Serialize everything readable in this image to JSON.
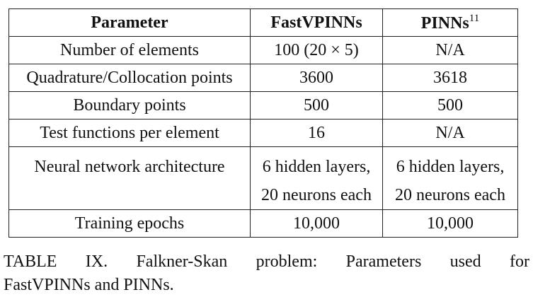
{
  "table": {
    "headers": {
      "parameter": "Parameter",
      "fastvpinns": "FastVPINNs",
      "pinns": "PINNs",
      "pinns_ref": "11"
    },
    "rows": [
      {
        "parameter": "Number of elements",
        "fastvpinns": "100 (20 × 5)",
        "pinns": "N/A"
      },
      {
        "parameter": "Quadrature/Collocation points",
        "fastvpinns": "3600",
        "pinns": "3618"
      },
      {
        "parameter": "Boundary points",
        "fastvpinns": "500",
        "pinns": "500"
      },
      {
        "parameter": "Test functions per element",
        "fastvpinns": "16",
        "pinns": "N/A"
      },
      {
        "parameter": "Neural network architecture",
        "fastvpinns_line1": "6 hidden layers,",
        "fastvpinns_line2": "20 neurons each",
        "pinns_line1": "6 hidden layers,",
        "pinns_line2": "20 neurons each"
      },
      {
        "parameter": "Training epochs",
        "fastvpinns": "10,000",
        "pinns": "10,000"
      }
    ]
  },
  "caption": {
    "line1": "TABLE IX. Falkner-Skan problem: Parameters used for",
    "line2": "FastVPINNs and PINNs."
  }
}
